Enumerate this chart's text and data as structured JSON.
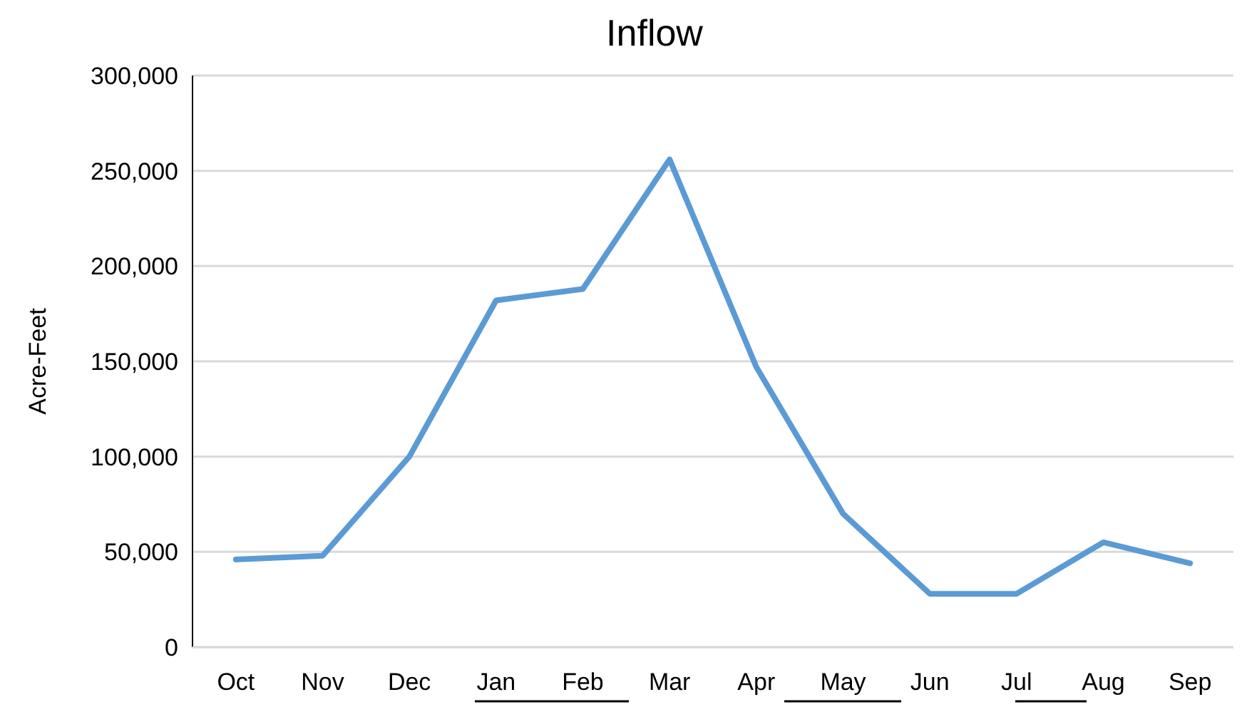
{
  "chart_data": {
    "type": "line",
    "title": "Inflow",
    "ylabel": "Acre-Feet",
    "categories": [
      "Oct",
      "Nov",
      "Dec",
      "Jan",
      "Feb",
      "Mar",
      "Apr",
      "May",
      "Jun",
      "Jul",
      "Aug",
      "Sep"
    ],
    "series": [
      {
        "color": "#5b9bd5",
        "values": [
          46000,
          48000,
          100000,
          182000,
          188000,
          256000,
          147000,
          70000,
          28000,
          28000,
          55000,
          44000
        ]
      }
    ],
    "ylim": [
      0,
      300000
    ],
    "yticks": [
      {
        "value": 0,
        "label": "0"
      },
      {
        "value": 50000,
        "label": "50,000"
      },
      {
        "value": 100000,
        "label": "100,000"
      },
      {
        "value": 150000,
        "label": "150,000"
      },
      {
        "value": 200000,
        "label": "200,000"
      },
      {
        "value": 250000,
        "label": "250,000"
      },
      {
        "value": 300000,
        "label": "300,000"
      }
    ],
    "grid": "y",
    "marker": "none",
    "line_style": "solid"
  }
}
